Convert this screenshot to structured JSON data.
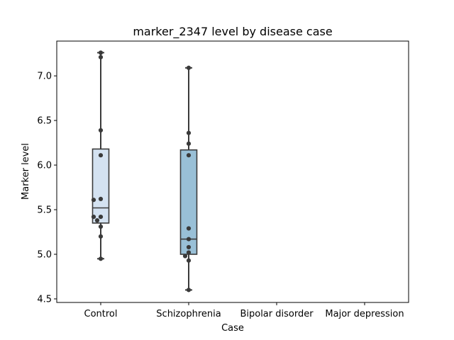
{
  "chart_data": {
    "type": "box",
    "title": "marker_2347 level by disease case",
    "xlabel": "Case",
    "ylabel": "Marker level",
    "ylim": [
      4.46,
      7.39
    ],
    "yticks": [
      4.5,
      5.0,
      5.5,
      6.0,
      6.5,
      7.0
    ],
    "ytick_labels": [
      "4.5",
      "5.0",
      "5.5",
      "6.0",
      "6.5",
      "7.0"
    ],
    "grid": false,
    "categories": [
      "Control",
      "Schizophrenia",
      "Bipolar disorder",
      "Major depression"
    ],
    "boxes": [
      {
        "category": "Control",
        "color": "#d4e2f1",
        "whisker_low": 4.95,
        "q1": 5.35,
        "median": 5.52,
        "q3": 6.18,
        "whisker_high": 7.26,
        "points": [
          7.26,
          7.21,
          6.39,
          6.11,
          5.62,
          5.61,
          5.42,
          5.42,
          5.38,
          5.31,
          5.2,
          4.95
        ]
      },
      {
        "category": "Schizophrenia",
        "color": "#99c0d7",
        "whisker_low": 4.6,
        "q1": 5.0,
        "median": 5.17,
        "q3": 6.17,
        "whisker_high": 7.09,
        "points": [
          7.09,
          6.36,
          6.24,
          6.11,
          5.29,
          5.17,
          5.08,
          5.02,
          4.98,
          4.93,
          4.6
        ]
      },
      {
        "category": "Bipolar disorder",
        "color": "#5b9bc8",
        "points": []
      },
      {
        "category": "Major depression",
        "color": "#2e6fa7",
        "points": []
      }
    ]
  }
}
